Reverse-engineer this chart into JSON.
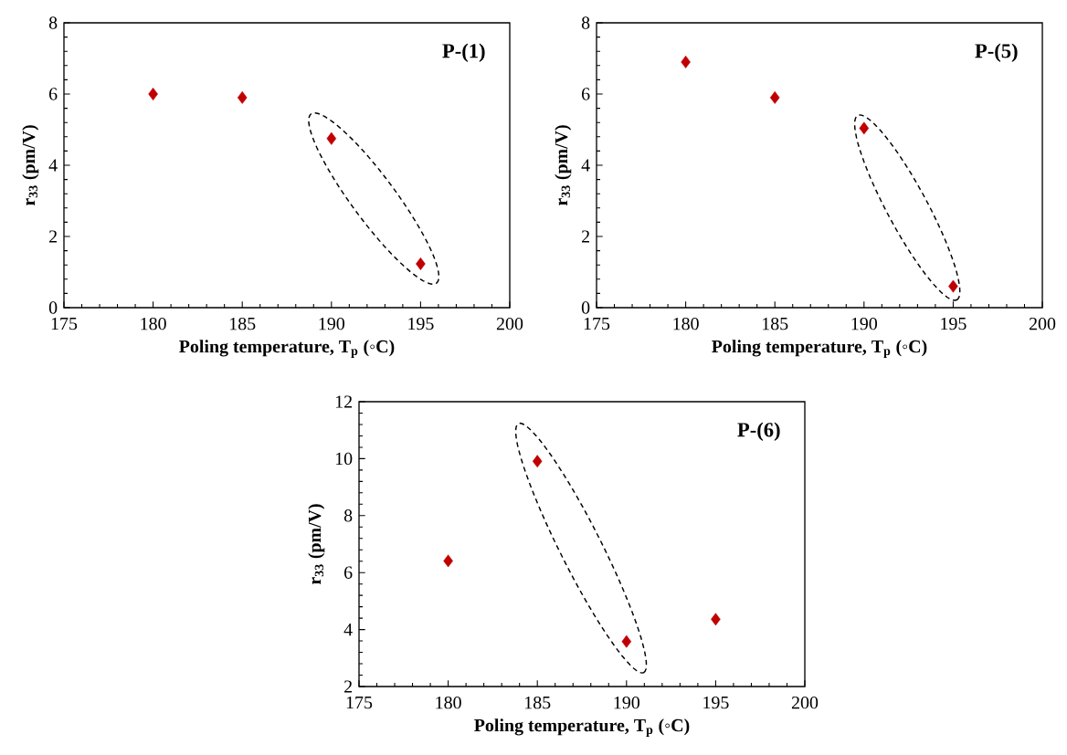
{
  "chart_data": [
    {
      "type": "scatter",
      "title": "P-(1)",
      "xlabel": "Poling temperature, T$_{p}$ (◦C)",
      "ylabel": "r$_{33}$ (pm/V)",
      "x": [
        180,
        185,
        190,
        195
      ],
      "values": [
        6.0,
        5.9,
        4.75,
        1.23
      ],
      "color": "#c00000",
      "marker": "diamond",
      "xlim": [
        175,
        200
      ],
      "xticks": [
        175,
        180,
        185,
        190,
        195,
        200
      ],
      "ylim": [
        0,
        8
      ],
      "yticks": [
        0,
        2,
        4,
        6,
        8
      ]
    },
    {
      "type": "scatter",
      "title": "P-(5)",
      "xlabel": "Poling temperature, T$_{p}$ (◦C)",
      "ylabel": "r$_{33}$ (pm/V)",
      "x": [
        180,
        185,
        190,
        195
      ],
      "values": [
        6.9,
        5.9,
        5.04,
        0.6
      ],
      "color": "#c00000",
      "marker": "diamond",
      "xlim": [
        175,
        200
      ],
      "xticks": [
        175,
        180,
        185,
        190,
        195,
        200
      ],
      "ylim": [
        0,
        8
      ],
      "yticks": [
        0,
        2,
        4,
        6,
        8
      ]
    },
    {
      "type": "scatter",
      "title": "P-(6)",
      "xlabel": "Poling temperature, T$_{p}$ (◦C)",
      "ylabel": "r$_{33}$ (pm/V)",
      "x": [
        180,
        185,
        190,
        195
      ],
      "values": [
        6.41,
        9.91,
        3.58,
        4.36
      ],
      "color": "#c00000",
      "marker": "diamond",
      "xlim": [
        175,
        200
      ],
      "xticks": [
        175,
        180,
        185,
        190,
        195,
        200
      ],
      "ylim": [
        2,
        12
      ],
      "yticks": [
        2,
        4,
        6,
        8,
        10,
        12
      ]
    }
  ]
}
